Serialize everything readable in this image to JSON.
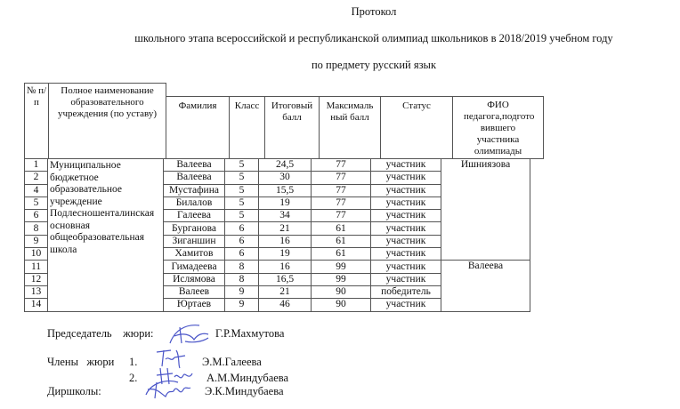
{
  "title": "Протокол",
  "subtitle": "школьного этапа всероссийской и республиканской олимпиад школьников в 2018/2019 учебном году",
  "subject": "по предмету русский язык",
  "table": {
    "headers": {
      "num": "№ п/п",
      "school": "Полное наименование образовательного учреждения (по уставу)",
      "surname": "Фамилия",
      "grade": "Класс",
      "score": "Итоговый балл",
      "max": "Максималь ный балл",
      "status": "Статус",
      "teacher": "ФИО педагога,подгото вившего участника олимпиады"
    },
    "school": "Муниципальное бюджетное образовательное учреждение Подлесношенталинская основная общеобразовательная школа",
    "teachers": [
      "Ишниязова",
      "Валеева"
    ],
    "rows": [
      {
        "num": "1",
        "surname": "Валеева",
        "grade": "5",
        "score": "24,5",
        "max": "77",
        "status": "участник"
      },
      {
        "num": "2",
        "surname": "Валеева",
        "grade": "5",
        "score": "30",
        "max": "77",
        "status": "участник"
      },
      {
        "num": "4",
        "surname": "Мустафина",
        "grade": "5",
        "score": "15,5",
        "max": "77",
        "status": "участник"
      },
      {
        "num": "5",
        "surname": "Билалов",
        "grade": "5",
        "score": "19",
        "max": "77",
        "status": "участник"
      },
      {
        "num": "6",
        "surname": "Галеева",
        "grade": "5",
        "score": "34",
        "max": "77",
        "status": "участник"
      },
      {
        "num": "8",
        "surname": "Бурганова",
        "grade": "6",
        "score": "21",
        "max": "61",
        "status": "участник"
      },
      {
        "num": "9",
        "surname": "Зиганшин",
        "grade": "6",
        "score": "16",
        "max": "61",
        "status": "участник"
      },
      {
        "num": "10",
        "surname": "Хамитов",
        "grade": "6",
        "score": "19",
        "max": "61",
        "status": "участник"
      },
      {
        "num": "11",
        "surname": "Гимадеева",
        "grade": "8",
        "score": "16",
        "max": "99",
        "status": "участник"
      },
      {
        "num": "12",
        "surname": "Ислямова",
        "grade": "8",
        "score": "16,5",
        "max": "99",
        "status": "участник"
      },
      {
        "num": "13",
        "surname": "Валеев",
        "grade": "9",
        "score": "21",
        "max": "90",
        "status": "победитель"
      },
      {
        "num": "14",
        "surname": "Юртаев",
        "grade": "9",
        "score": "46",
        "max": "90",
        "status": "участник"
      }
    ]
  },
  "signatures": {
    "chair_label": "Председатель    жюри:",
    "chair_name": "Г.Р.Махмутова",
    "members_label": "Члены   жюри",
    "member1_num": "1.",
    "member1_name": "Э.М.Галеева",
    "member2_num": "2.",
    "member2_name": "А.М.Миндубаева",
    "director_label": "Диршколы:",
    "director_name": "Э.К.Миндубаева",
    "ink_color": "#4a55c8"
  }
}
